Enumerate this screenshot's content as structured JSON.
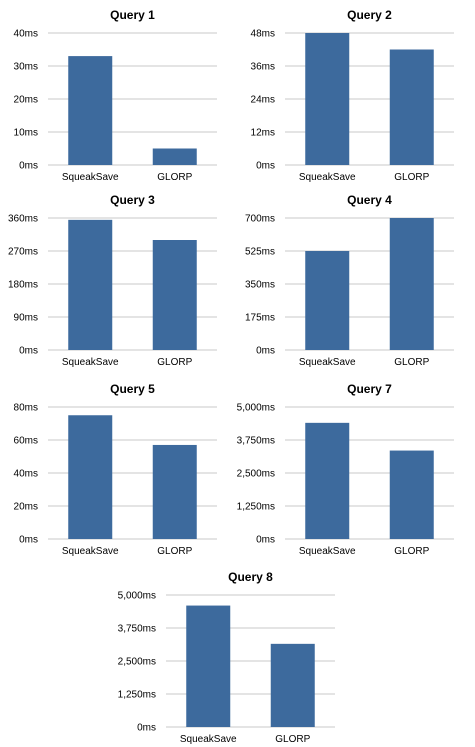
{
  "colors": {
    "bar": "#3d6a9d",
    "grid": "#b9b9b9",
    "text": "#000000",
    "background": "#ffffff"
  },
  "chart_data": [
    {
      "type": "bar",
      "title": "Query 1",
      "categories": [
        "SqueakSave",
        "GLORP"
      ],
      "values": [
        33,
        5
      ],
      "unit": "ms",
      "ylim": [
        0,
        40
      ],
      "yticks": [
        "0ms",
        "10ms",
        "20ms",
        "30ms",
        "40ms"
      ],
      "grid": true
    },
    {
      "type": "bar",
      "title": "Query 2",
      "categories": [
        "SqueakSave",
        "GLORP"
      ],
      "values": [
        48,
        42
      ],
      "unit": "ms",
      "ylim": [
        0,
        48
      ],
      "yticks": [
        "0ms",
        "12ms",
        "24ms",
        "36ms",
        "48ms"
      ],
      "grid": true
    },
    {
      "type": "bar",
      "title": "Query 3",
      "categories": [
        "SqueakSave",
        "GLORP"
      ],
      "values": [
        355,
        300
      ],
      "unit": "ms",
      "ylim": [
        0,
        360
      ],
      "yticks": [
        "0ms",
        "90ms",
        "180ms",
        "270ms",
        "360ms"
      ],
      "grid": true
    },
    {
      "type": "bar",
      "title": "Query 4",
      "categories": [
        "SqueakSave",
        "GLORP"
      ],
      "values": [
        525,
        700
      ],
      "unit": "ms",
      "ylim": [
        0,
        700
      ],
      "yticks": [
        "0ms",
        "175ms",
        "350ms",
        "525ms",
        "700ms"
      ],
      "grid": true
    },
    {
      "type": "bar",
      "title": "Query 5",
      "categories": [
        "SqueakSave",
        "GLORP"
      ],
      "values": [
        75,
        57
      ],
      "unit": "ms",
      "ylim": [
        0,
        80
      ],
      "yticks": [
        "0ms",
        "20ms",
        "40ms",
        "60ms",
        "80ms"
      ],
      "grid": true
    },
    {
      "type": "bar",
      "title": "Query 7",
      "categories": [
        "SqueakSave",
        "GLORP"
      ],
      "values": [
        4400,
        3350
      ],
      "unit": "ms",
      "ylim": [
        0,
        5000
      ],
      "yticks": [
        "0ms",
        "1,250ms",
        "2,500ms",
        "3,750ms",
        "5,000ms"
      ],
      "grid": true
    },
    {
      "type": "bar",
      "title": "Query 8",
      "categories": [
        "SqueakSave",
        "GLORP"
      ],
      "values": [
        4600,
        3150
      ],
      "unit": "ms",
      "ylim": [
        0,
        5000
      ],
      "yticks": [
        "0ms",
        "1,250ms",
        "2,500ms",
        "3,750ms",
        "5,000ms"
      ],
      "grid": true
    }
  ]
}
